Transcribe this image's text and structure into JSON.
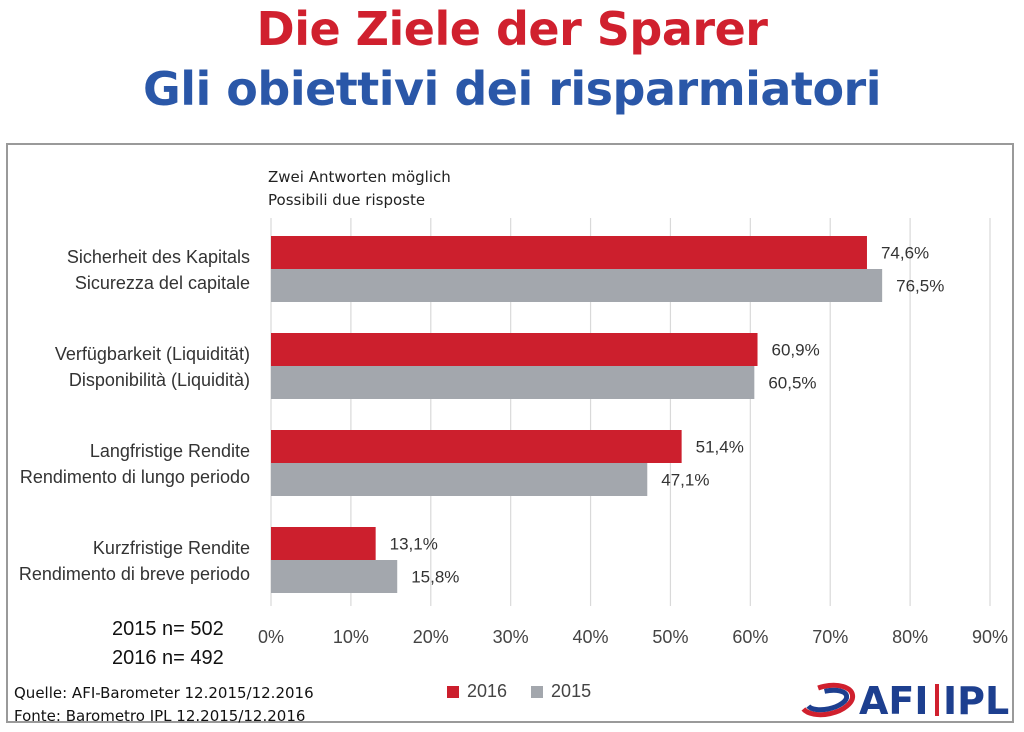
{
  "header": {
    "title_de": "Die Ziele der Sparer",
    "title_it": "Gli obiettivi dei risparmiatori"
  },
  "note": {
    "line1": "Zwei Antworten möglich",
    "line2": "Possibili due risposte"
  },
  "sample": {
    "n2015": "2015 n= 502",
    "n2016": "2016 n= 492"
  },
  "source": {
    "de": "Quelle: AFI-Barometer 12.2015/12.2016",
    "it": "Fonte: Barometro IPL 12.2015/12.2016"
  },
  "logo": {
    "text": "AFI IPL"
  },
  "colors": {
    "title_de": "#d0202e",
    "title_it": "#2a57a8",
    "series_2016": "#cc1f2d",
    "series_2015": "#a3a7ad",
    "grid": "#d9d9d9",
    "logo_blue": "#1d3f8f",
    "logo_red": "#d0202e"
  },
  "chart_data": {
    "type": "bar",
    "orientation": "horizontal",
    "categories": [
      [
        "Sicherheit des Kapitals",
        "Sicurezza del capitale"
      ],
      [
        "Verfügbarkeit (Liquidität)",
        "Disponibilità (Liquidità)"
      ],
      [
        "Langfristige Rendite",
        "Rendimento di lungo periodo"
      ],
      [
        "Kurzfristige Rendite",
        "Rendimento di breve periodo"
      ]
    ],
    "series": [
      {
        "name": "2016",
        "values": [
          74.6,
          60.9,
          51.4,
          13.1
        ],
        "labels": [
          "74,6%",
          "60,9%",
          "51,4%",
          "13,1%"
        ]
      },
      {
        "name": "2015",
        "values": [
          76.5,
          60.5,
          47.1,
          15.8
        ],
        "labels": [
          "76,5%",
          "60,5%",
          "47,1%",
          "15,8%"
        ]
      }
    ],
    "xlim": [
      0,
      90
    ],
    "xticks": [
      0,
      10,
      20,
      30,
      40,
      50,
      60,
      70,
      80,
      90
    ],
    "xtick_labels": [
      "0%",
      "10%",
      "20%",
      "30%",
      "40%",
      "50%",
      "60%",
      "70%",
      "80%",
      "90%"
    ],
    "grid": true,
    "legend": "bottom-center"
  }
}
